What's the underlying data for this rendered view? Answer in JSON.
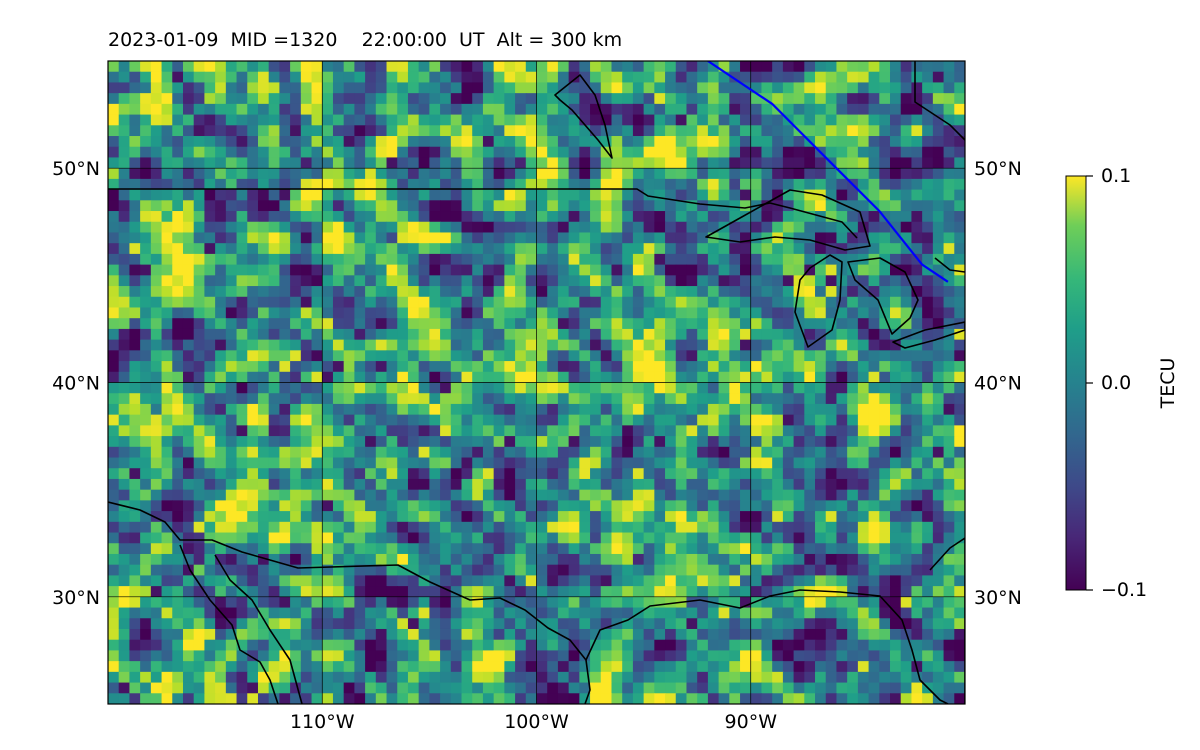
{
  "title": "2023-01-09  MID =1320    22:00:00  UT  Alt = 300 km",
  "map": {
    "lon_range": [
      -120,
      -80
    ],
    "lat_range": [
      25,
      55
    ],
    "lon_ticks": [
      -110,
      -100,
      -90
    ],
    "lat_ticks": [
      30,
      40,
      50
    ],
    "lon_tick_labels": [
      "110°W",
      "100°W",
      "90°W"
    ],
    "lat_tick_labels_left": [
      "30°N",
      "40°N",
      "50°N"
    ],
    "lat_tick_labels_right": [
      "30°N",
      "40°N",
      "50°N"
    ],
    "grid": true,
    "colormap": "viridis",
    "grid_resolution_deg": 0.5,
    "terminator_line_color": "#0000ff",
    "terminator_line": [
      [
        -92,
        55
      ],
      [
        -89,
        53
      ],
      [
        -86,
        50
      ],
      [
        -84,
        48
      ],
      [
        -82,
        45.5
      ],
      [
        -80.8,
        44.7
      ]
    ],
    "coastline_color": "#000000"
  },
  "colorbar": {
    "label": "TECU",
    "min": -0.1,
    "max": 0.1,
    "ticks": [
      "0.1",
      "0.0",
      "−0.1"
    ]
  }
}
